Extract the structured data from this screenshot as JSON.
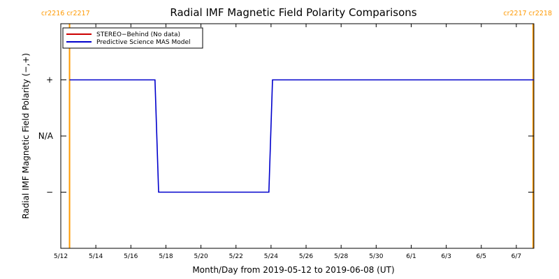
{
  "chart_data": {
    "type": "line",
    "title": "Radial IMF Magnetic Field Polarity Comparisons",
    "xlabel": "Month/Day from 2019-05-12 to 2019-06-08 (UT)",
    "ylabel": "Radial IMF Magnetic Field Polarity (−,+)",
    "x_range": [
      "2019-05-12",
      "2019-06-08"
    ],
    "x_ticks": [
      {
        "date": "2019-05-12",
        "label": "5/12"
      },
      {
        "date": "2019-05-14",
        "label": "5/14"
      },
      {
        "date": "2019-05-16",
        "label": "5/16"
      },
      {
        "date": "2019-05-18",
        "label": "5/18"
      },
      {
        "date": "2019-05-20",
        "label": "5/20"
      },
      {
        "date": "2019-05-22",
        "label": "5/22"
      },
      {
        "date": "2019-05-24",
        "label": "5/24"
      },
      {
        "date": "2019-05-26",
        "label": "5/26"
      },
      {
        "date": "2019-05-28",
        "label": "5/28"
      },
      {
        "date": "2019-05-30",
        "label": "5/30"
      },
      {
        "date": "2019-06-01",
        "label": "6/1"
      },
      {
        "date": "2019-06-03",
        "label": "6/3"
      },
      {
        "date": "2019-06-05",
        "label": "6/5"
      },
      {
        "date": "2019-06-07",
        "label": "6/7"
      }
    ],
    "y_range": [
      -2,
      2
    ],
    "y_ticks": [
      {
        "value": 1,
        "label": "+"
      },
      {
        "value": 0,
        "label": "N/A"
      },
      {
        "value": -1,
        "label": "−"
      }
    ],
    "grid": false,
    "legend_position": "top-left",
    "series": [
      {
        "name": "STEREO−Behind (No data)",
        "color": "#cc0000",
        "points": []
      },
      {
        "name": "Predictive Science MAS Model",
        "color": "#0000cc",
        "points": [
          {
            "x": "2019-05-12T12:00",
            "y": 1
          },
          {
            "x": "2019-05-17T09:00",
            "y": 1
          },
          {
            "x": "2019-05-17T14:00",
            "y": -1
          },
          {
            "x": "2019-05-23T21:00",
            "y": -1
          },
          {
            "x": "2019-05-24T02:00",
            "y": 1
          },
          {
            "x": "2019-06-08T00:00",
            "y": 1
          }
        ]
      }
    ],
    "carrington_markers": [
      {
        "date": "2019-05-12T12:00",
        "labels": [
          "cr2216",
          "cr2217"
        ]
      },
      {
        "date": "2019-06-08T21:00",
        "labels": [
          "cr2217",
          "cr2218"
        ]
      }
    ],
    "marker_color": "#ff9900"
  }
}
